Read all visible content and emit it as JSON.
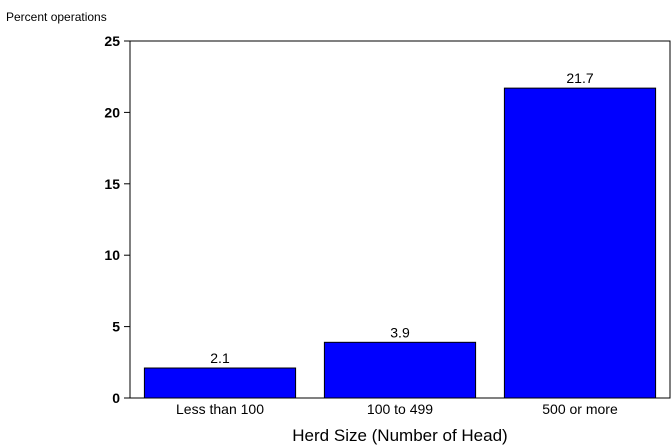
{
  "chart_data": {
    "type": "bar",
    "categories": [
      "Less than 100",
      "100 to 499",
      "500 or more"
    ],
    "values": [
      2.1,
      3.9,
      21.7
    ],
    "data_labels": [
      "2.1",
      "3.9",
      "21.7"
    ],
    "title": "",
    "xlabel": "Herd Size (Number of Head)",
    "ylabel": "Percent operations",
    "ylim": [
      0,
      25
    ],
    "yticks": [
      "0",
      "5",
      "10",
      "15",
      "20",
      "25"
    ],
    "bar_color": "#0000ff",
    "grid": false,
    "legend": "none"
  }
}
